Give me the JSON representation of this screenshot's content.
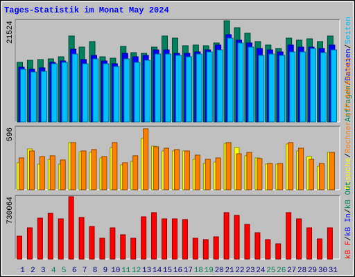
{
  "title": "Tages-Statistik im Monat May 2024",
  "legend_separator": "/",
  "chart_data": [
    {
      "type": "bar",
      "ylim": [
        0,
        21524
      ],
      "yticks": [
        21524
      ],
      "series": [
        {
          "name": "Anfragen",
          "color": "#00805c",
          "values": [
            12506,
            12942,
            13088,
            13233,
            13671,
            18034,
            15706,
            16870,
            13671,
            13380,
            15852,
            14543,
            14398,
            15706,
            18034,
            17597,
            15997,
            16143,
            15997,
            16579,
            21233,
            19778,
            18615,
            16870,
            16143,
            15415,
            17597,
            17161,
            17452,
            16870,
            18034
          ]
        },
        {
          "name": "Dateien",
          "color": "#0000ff",
          "values": [
            11490,
            11050,
            11340,
            12500,
            12800,
            15270,
            13090,
            13960,
            12800,
            12210,
            14400,
            13670,
            13960,
            15120,
            15120,
            14400,
            14400,
            14690,
            15120,
            16140,
            18320,
            17160,
            16580,
            15410,
            15120,
            14690,
            16140,
            15700,
            15700,
            15410,
            16140
          ]
        },
        {
          "name": "Seiten",
          "color": "#00c0ff",
          "values": [
            11050,
            10470,
            10610,
            12210,
            12500,
            14250,
            12210,
            13230,
            12210,
            11630,
            13230,
            12500,
            12940,
            14250,
            14250,
            13960,
            13670,
            14250,
            14690,
            15120,
            17590,
            16580,
            15700,
            13960,
            14250,
            13960,
            14690,
            14690,
            15410,
            14540,
            15120
          ]
        }
      ]
    },
    {
      "type": "bar",
      "ylim": [
        0,
        596
      ],
      "yticks": [
        596
      ],
      "series": [
        {
          "name": "Besuche",
          "color": "#ffff00",
          "values": [
            253,
            382,
            240,
            285,
            240,
            441,
            356,
            350,
            298,
            395,
            233,
            266,
            480,
            408,
            363,
            363,
            363,
            285,
            246,
            259,
            434,
            395,
            318,
            298,
            240,
            240,
            428,
            363,
            311,
            220,
            350
          ]
        },
        {
          "name": "Rechner (IP-Adressen)",
          "color": "#ff8000",
          "values": [
            298,
            363,
            311,
            318,
            279,
            441,
            363,
            376,
            311,
            441,
            253,
            318,
            570,
            402,
            389,
            376,
            363,
            324,
            285,
            298,
            441,
            337,
            350,
            292,
            246,
            246,
            441,
            389,
            285,
            246,
            350
          ]
        }
      ]
    },
    {
      "type": "bar",
      "ylim": [
        0,
        730064
      ],
      "yticks": [
        730064
      ],
      "categories": [
        "1",
        "2",
        "3",
        "4",
        "5",
        "6",
        "7",
        "8",
        "9",
        "10",
        "11",
        "12",
        "13",
        "14",
        "15",
        "16",
        "17",
        "18",
        "19",
        "20",
        "21",
        "22",
        "23",
        "24",
        "25",
        "26",
        "27",
        "28",
        "29",
        "30",
        "31"
      ],
      "category_color": "#000080",
      "weekend_color": "#00805c",
      "weekend_indices": [
        3,
        4,
        10,
        11,
        17,
        18,
        24,
        25
      ],
      "series": [
        {
          "name": "kB F",
          "color": "#ff0000",
          "values": [
            261860,
            357080,
            468170,
            523710,
            460230,
            714150,
            476100,
            372950,
            238050,
            357080,
            277730,
            238050,
            484040,
            531650,
            460230,
            460230,
            452300,
            238050,
            222180,
            253920,
            531650,
            499910,
            396750,
            301530,
            222180,
            174570,
            531650,
            460230,
            357080,
            230120,
            357080
          ]
        }
      ],
      "legend_extra": [
        {
          "name": "kB In",
          "color": "#0000ff"
        },
        {
          "name": "kB Out",
          "color": "#00805c"
        }
      ]
    }
  ]
}
